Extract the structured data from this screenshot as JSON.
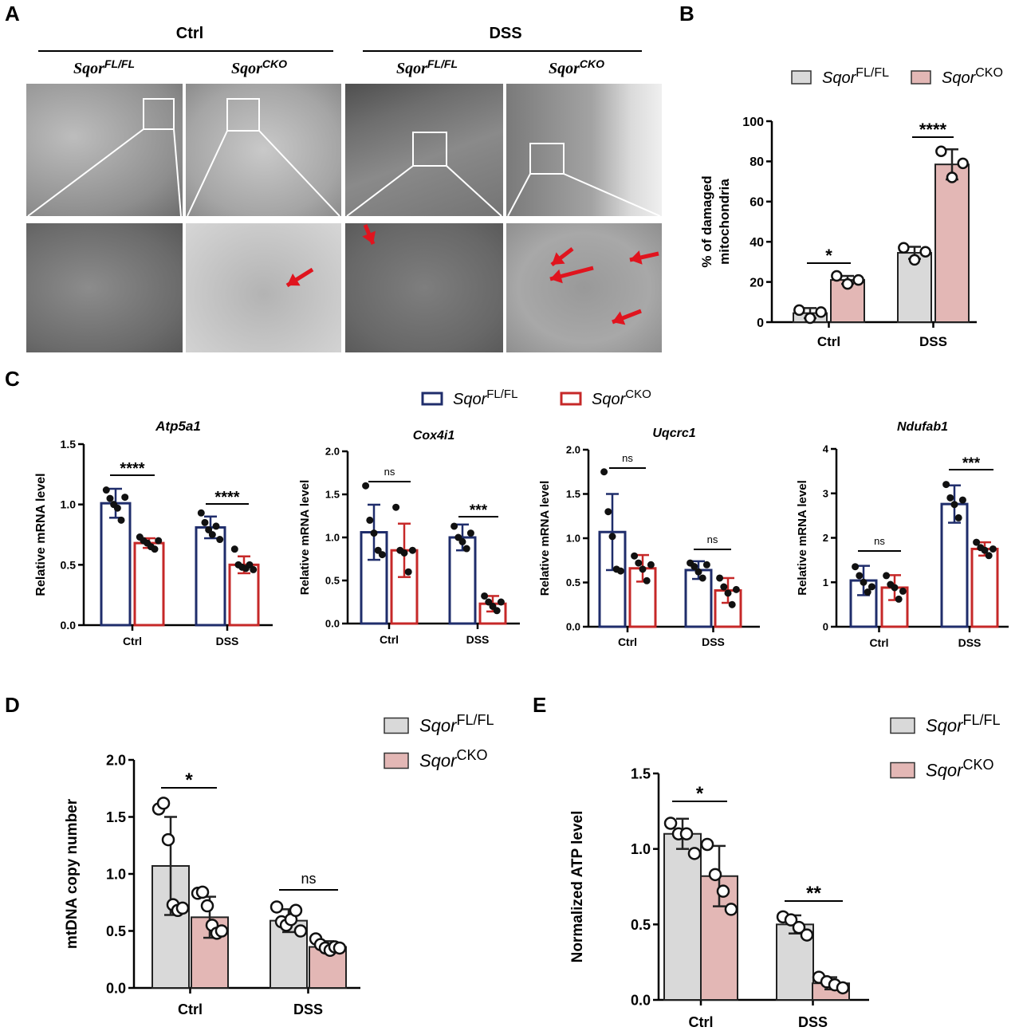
{
  "panel_letters": {
    "a": "A",
    "b": "B",
    "c": "C",
    "d": "D",
    "e": "E"
  },
  "panel_a": {
    "groups": [
      "Ctrl",
      "DSS"
    ],
    "genotypes": [
      {
        "name": "Sqor",
        "sup": "FL/FL"
      },
      {
        "name": "Sqor",
        "sup": "CKO"
      },
      {
        "name": "Sqor",
        "sup": "FL/FL"
      },
      {
        "name": "Sqor",
        "sup": "CKO"
      }
    ]
  },
  "legend_b": [
    {
      "name": "Sqor",
      "sup": "FL/FL",
      "fill": "#d9d9d9"
    },
    {
      "name": "Sqor",
      "sup": "CKO",
      "fill": "#e3b7b5"
    }
  ],
  "legend_c": [
    {
      "name": "Sqor",
      "sup": "FL/FL",
      "color": "#1f2d6b"
    },
    {
      "name": "Sqor",
      "sup": "CKO",
      "color": "#c62828"
    }
  ],
  "colors": {
    "fl": "#d9d9d9",
    "cko": "#e3b7b5",
    "fl_line": "#1f2d6b",
    "cko_line": "#c62828",
    "arrow": "#e0141e"
  },
  "chart_data": [
    {
      "id": "B",
      "type": "bar",
      "style": "filled",
      "title": "",
      "xlabel": "",
      "ylabel": "% of damaged mitochondria",
      "ylim": [
        0,
        100
      ],
      "yticks": [
        "0",
        "20",
        "40",
        "60",
        "80",
        "100"
      ],
      "categories": [
        "Ctrl",
        "DSS"
      ],
      "series": [
        {
          "name": "SqorFL/FL",
          "values": [
            4.5,
            34.5
          ],
          "sd": [
            2.5,
            3
          ],
          "points": [
            [
              6,
              2,
              5
            ],
            [
              37,
              31,
              35
            ]
          ]
        },
        {
          "name": "SqorCKO",
          "values": [
            21,
            78.5
          ],
          "sd": [
            2,
            7.5
          ],
          "points": [
            [
              23,
              19,
              21
            ],
            [
              85,
              72,
              79
            ]
          ]
        }
      ],
      "significance": [
        "*",
        "****"
      ]
    },
    {
      "id": "C1",
      "type": "bar",
      "style": "outline",
      "title": "Atp5a1",
      "xlabel": "",
      "ylabel": "Relative mRNA level",
      "ylim": [
        0,
        1.5
      ],
      "yticks": [
        "0.0",
        "0.5",
        "1.0",
        "1.5"
      ],
      "categories": [
        "Ctrl",
        "DSS"
      ],
      "series": [
        {
          "name": "SqorFL/FL",
          "values": [
            1.01,
            0.81
          ],
          "sd": [
            0.12,
            0.09
          ],
          "points": [
            [
              1.12,
              1.05,
              1.0,
              0.97,
              0.87,
              1.06
            ],
            [
              0.93,
              0.85,
              0.79,
              0.75,
              0.82,
              0.71
            ]
          ]
        },
        {
          "name": "SqorCKO",
          "values": [
            0.68,
            0.5
          ],
          "sd": [
            0.04,
            0.07
          ],
          "points": [
            [
              0.73,
              0.7,
              0.68,
              0.65,
              0.63,
              0.7
            ],
            [
              0.63,
              0.5,
              0.48,
              0.47,
              0.5,
              0.46
            ]
          ]
        }
      ],
      "significance": [
        "****",
        "****"
      ]
    },
    {
      "id": "C2",
      "type": "bar",
      "style": "outline",
      "title": "Cox4i1",
      "xlabel": "",
      "ylabel": "Relative mRNA level",
      "ylim": [
        0,
        2
      ],
      "yticks": [
        "0.0",
        "0.5",
        "1.0",
        "1.5",
        "2.0"
      ],
      "categories": [
        "Ctrl",
        "DSS"
      ],
      "series": [
        {
          "name": "SqorFL/FL",
          "values": [
            1.06,
            1.0
          ],
          "sd": [
            0.32,
            0.15
          ],
          "points": [
            [
              1.6,
              1.2,
              1.05,
              0.85,
              0.8
            ],
            [
              1.13,
              1.0,
              0.95,
              0.87,
              1.05
            ]
          ]
        },
        {
          "name": "SqorCKO",
          "values": [
            0.85,
            0.23
          ],
          "sd": [
            0.31,
            0.09
          ],
          "points": [
            [
              1.35,
              0.85,
              0.82,
              0.6,
              0.85
            ],
            [
              0.32,
              0.25,
              0.2,
              0.15,
              0.25
            ]
          ]
        }
      ],
      "significance": [
        "ns",
        "***"
      ]
    },
    {
      "id": "C3",
      "type": "bar",
      "style": "outline",
      "title": "Uqcrc1",
      "xlabel": "",
      "ylabel": "Relative mRNA level",
      "ylim": [
        0,
        2
      ],
      "yticks": [
        "0.0",
        "0.5",
        "1.0",
        "1.5",
        "2.0"
      ],
      "categories": [
        "Ctrl",
        "DSS"
      ],
      "series": [
        {
          "name": "SqorFL/FL",
          "values": [
            1.07,
            0.64
          ],
          "sd": [
            0.43,
            0.1
          ],
          "points": [
            [
              1.75,
              1.3,
              1.02,
              0.65,
              0.63
            ],
            [
              0.72,
              0.68,
              0.62,
              0.55,
              0.7
            ]
          ]
        },
        {
          "name": "SqorCKO",
          "values": [
            0.66,
            0.41
          ],
          "sd": [
            0.15,
            0.14
          ],
          "points": [
            [
              0.8,
              0.72,
              0.65,
              0.52,
              0.7
            ],
            [
              0.55,
              0.45,
              0.38,
              0.25,
              0.42
            ]
          ]
        }
      ],
      "significance": [
        "ns",
        "ns"
      ]
    },
    {
      "id": "C4",
      "type": "bar",
      "style": "outline",
      "title": "Ndufab1",
      "xlabel": "",
      "ylabel": "Relative mRNA level",
      "ylim": [
        0,
        4
      ],
      "yticks": [
        "0",
        "1",
        "2",
        "3",
        "4"
      ],
      "categories": [
        "Ctrl",
        "DSS"
      ],
      "series": [
        {
          "name": "SqorFL/FL",
          "values": [
            1.04,
            2.76
          ],
          "sd": [
            0.33,
            0.42
          ],
          "points": [
            [
              1.35,
              1.15,
              1.0,
              0.78,
              0.9
            ],
            [
              3.2,
              2.9,
              2.75,
              2.45,
              2.85
            ]
          ]
        },
        {
          "name": "SqorCKO",
          "values": [
            0.88,
            1.75
          ],
          "sd": [
            0.28,
            0.15
          ],
          "points": [
            [
              1.15,
              0.95,
              0.88,
              0.62,
              0.8
            ],
            [
              1.9,
              1.78,
              1.72,
              1.6,
              1.75
            ]
          ]
        }
      ],
      "significance": [
        "ns",
        "***"
      ]
    },
    {
      "id": "D",
      "type": "bar",
      "style": "filled",
      "title": "",
      "xlabel": "",
      "ylabel": "mtDNA copy number",
      "ylim": [
        0,
        2
      ],
      "yticks": [
        "0.0",
        "0.5",
        "1.0",
        "1.5",
        "2.0"
      ],
      "categories": [
        "Ctrl",
        "DSS"
      ],
      "series": [
        {
          "name": "SqorFL/FL",
          "values": [
            1.07,
            0.59
          ],
          "sd": [
            0.43,
            0.1
          ],
          "points": [
            [
              1.57,
              1.62,
              1.3,
              0.73,
              0.68,
              0.7
            ],
            [
              0.71,
              0.58,
              0.55,
              0.6,
              0.68,
              0.5
            ]
          ]
        },
        {
          "name": "SqorCKO",
          "values": [
            0.62,
            0.36
          ],
          "sd": [
            0.18,
            0.05
          ],
          "points": [
            [
              0.83,
              0.84,
              0.72,
              0.55,
              0.48,
              0.5
            ],
            [
              0.43,
              0.38,
              0.35,
              0.33,
              0.36,
              0.35
            ]
          ]
        }
      ],
      "significance": [
        "*",
        "ns"
      ]
    },
    {
      "id": "E",
      "type": "bar",
      "style": "filled",
      "title": "",
      "xlabel": "",
      "ylabel": "Normalized ATP level",
      "ylim": [
        0,
        1.5
      ],
      "yticks": [
        "0.0",
        "0.5",
        "1.0",
        "1.5"
      ],
      "categories": [
        "Ctrl",
        "DSS"
      ],
      "series": [
        {
          "name": "SqorFL/FL",
          "values": [
            1.1,
            0.5
          ],
          "sd": [
            0.1,
            0.06
          ],
          "points": [
            [
              1.17,
              1.1,
              1.1,
              0.97
            ],
            [
              0.55,
              0.53,
              0.48,
              0.43
            ]
          ]
        },
        {
          "name": "SqorCKO",
          "values": [
            0.82,
            0.11
          ],
          "sd": [
            0.2,
            0.04
          ],
          "points": [
            [
              1.03,
              0.83,
              0.72,
              0.6
            ],
            [
              0.15,
              0.12,
              0.1,
              0.08
            ]
          ]
        }
      ],
      "significance": [
        "*",
        "**"
      ]
    }
  ]
}
